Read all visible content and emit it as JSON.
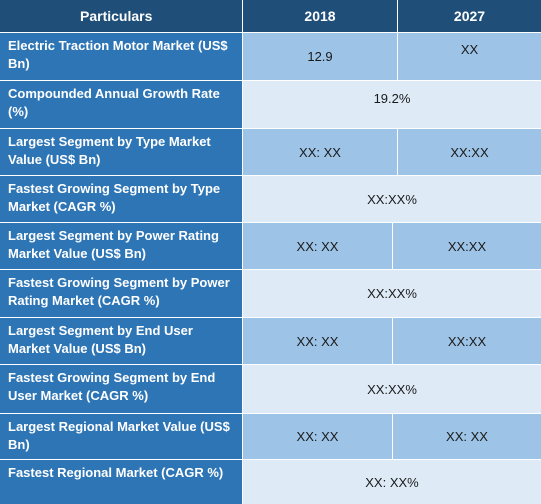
{
  "header": {
    "particulars": "Particulars",
    "y2018": "2018",
    "y2027": "2027"
  },
  "rows": [
    {
      "label": "Electric Traction Motor Market (US$ Bn)",
      "v2018": "12.9",
      "v2027": "XX"
    },
    {
      "label": "Compounded Annual Growth Rate (%)",
      "value": "19.2%"
    },
    {
      "label": "Largest Segment by Type Market Value (US$ Bn)",
      "v2018": "XX: XX",
      "v2027": "XX:XX"
    },
    {
      "label": "Fastest Growing Segment by Type Market (CAGR %)",
      "value": "XX:XX%"
    },
    {
      "label": "Largest Segment by Power Rating Market Value (US$ Bn)",
      "v2018": "XX: XX",
      "v2027": "XX:XX"
    },
    {
      "label": "Fastest Growing Segment by Power Rating Market (CAGR %)",
      "value": "XX:XX%"
    },
    {
      "label": "Largest Segment by End User Market Value (US$ Bn)",
      "v2018": "XX: XX",
      "v2027": "XX:XX"
    },
    {
      "label": "Fastest Growing Segment by End User Market (CAGR %)",
      "value": "XX:XX%"
    },
    {
      "label": "Largest Regional Market Value (US$ Bn)",
      "v2018": "XX: XX",
      "v2027": "XX: XX"
    },
    {
      "label": "Fastest Regional Market (CAGR %)",
      "value": "XX: XX%"
    }
  ]
}
